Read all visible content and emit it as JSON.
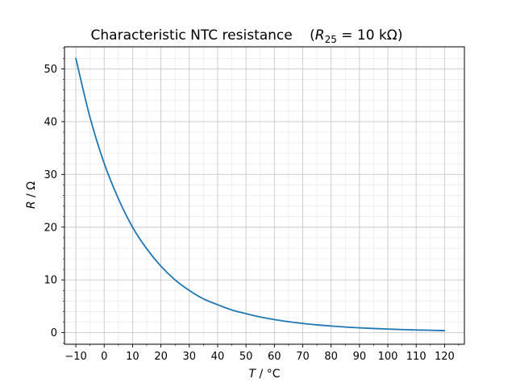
{
  "chart_data": {
    "type": "line",
    "title": {
      "prefix": "Characteristic NTC resistance",
      "math_symbol": "R",
      "math_subscript": "25",
      "math_value": " = 10 kΩ"
    },
    "xlabel": {
      "symbol": "T",
      "unit": " / °C"
    },
    "ylabel": {
      "symbol": "R",
      "unit": " / Ω"
    },
    "xlim": [
      -14,
      127
    ],
    "ylim": [
      -2.2,
      54.2
    ],
    "xticks": [
      -10,
      0,
      10,
      20,
      30,
      40,
      50,
      60,
      70,
      80,
      90,
      100,
      110,
      120
    ],
    "xtick_labels": [
      "−10",
      "0",
      "10",
      "20",
      "30",
      "40",
      "50",
      "60",
      "70",
      "80",
      "90",
      "100",
      "110",
      "120"
    ],
    "xminor_step": 5,
    "yticks": [
      0,
      10,
      20,
      30,
      40,
      50
    ],
    "ytick_labels": [
      "0",
      "10",
      "20",
      "30",
      "40",
      "50"
    ],
    "yminor_step": 2,
    "grid": {
      "major": true,
      "minor": true
    },
    "series": [
      {
        "x": [
          -10,
          -5,
          0,
          5,
          10,
          15,
          20,
          25,
          30,
          35,
          40,
          45,
          50,
          55,
          60,
          65,
          70,
          75,
          80,
          85,
          90,
          95,
          100,
          105,
          110,
          115,
          120
        ],
        "y": [
          52.0,
          40.8,
          32.1,
          25.4,
          20.0,
          15.9,
          12.6,
          10.0,
          8.0,
          6.4,
          5.3,
          4.3,
          3.6,
          2.97,
          2.48,
          2.08,
          1.75,
          1.48,
          1.26,
          1.07,
          0.92,
          0.79,
          0.68,
          0.59,
          0.51,
          0.45,
          0.39
        ],
        "color": "#1f77b4"
      }
    ]
  }
}
